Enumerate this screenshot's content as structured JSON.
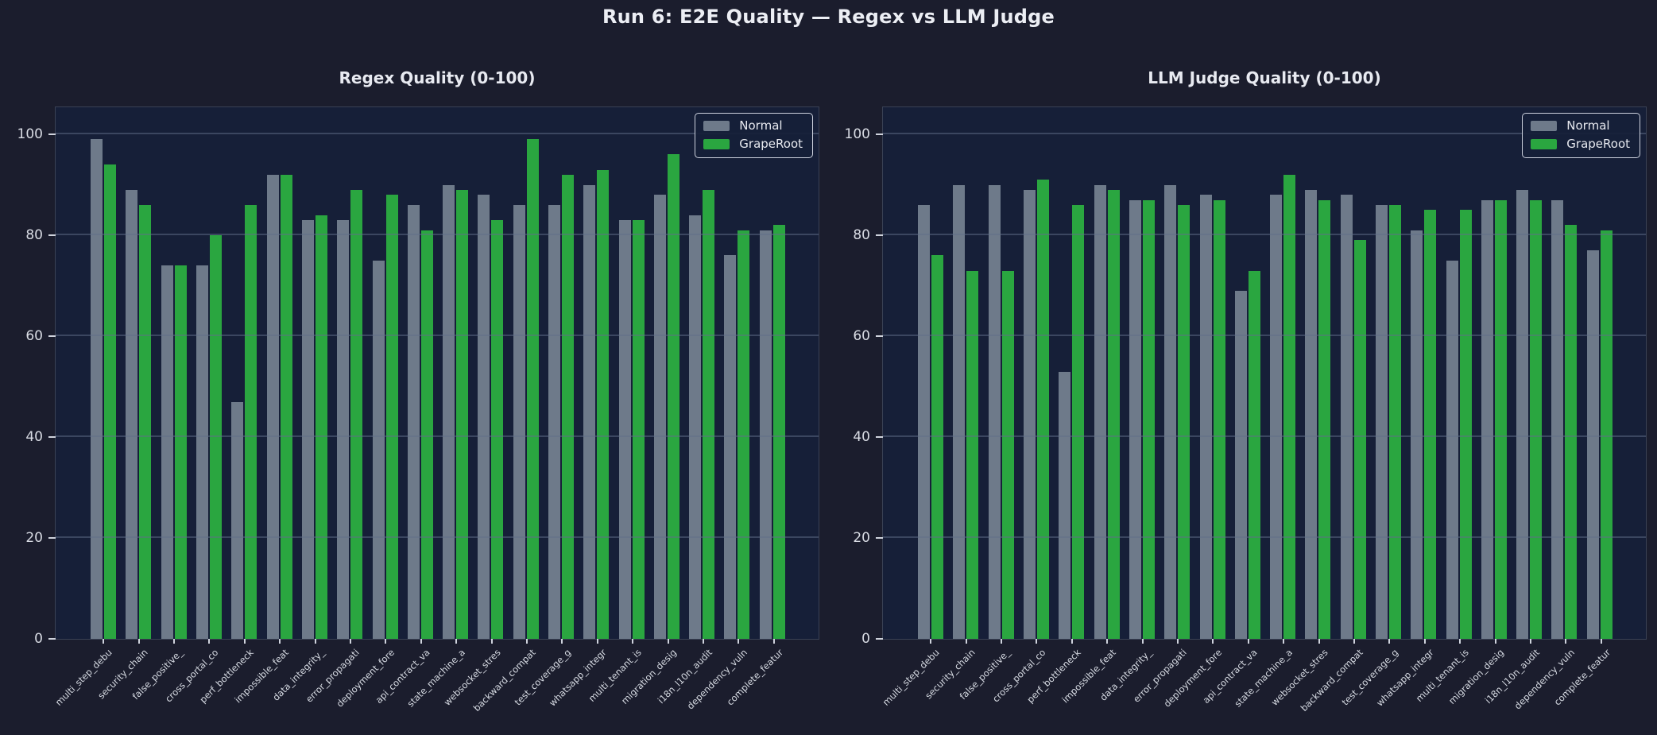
{
  "page_title": "Run 6: E2E Quality — Regex vs LLM Judge",
  "colors": {
    "background": "#1b1d2d",
    "plot_background": "#161f38",
    "normal_bar": "#6e7a8a",
    "graperoot_bar": "#2aa640",
    "tick_text": "#d9dce4",
    "title_text": "#eceef4"
  },
  "legend": {
    "entries": [
      {
        "label": "Normal",
        "color": "#6e7a8a"
      },
      {
        "label": "GrapeRoot",
        "color": "#2aa640"
      }
    ],
    "position": "upper right"
  },
  "chart_data": [
    {
      "type": "bar",
      "title": "Regex Quality (0-100)",
      "categories": [
        "multi_step_debu",
        "security_chain",
        "false_positive_",
        "cross_portal_co",
        "perf_bottleneck",
        "impossible_feat",
        "data_integrity_",
        "error_propagati",
        "deployment_fore",
        "api_contract_va",
        "state_machine_a",
        "websocket_stres",
        "backward_compat",
        "test_coverage_g",
        "whatsapp_integr",
        "multi_tenant_is",
        "migration_desig",
        "i18n_l10n_audit",
        "dependency_vuln",
        "complete_featur"
      ],
      "series": [
        {
          "name": "Normal",
          "values": [
            99,
            89,
            74,
            74,
            47,
            92,
            83,
            83,
            75,
            86,
            90,
            88,
            86,
            86,
            90,
            83,
            88,
            84,
            76,
            81
          ]
        },
        {
          "name": "GrapeRoot",
          "values": [
            94,
            86,
            74,
            80,
            86,
            92,
            84,
            89,
            88,
            81,
            89,
            83,
            99,
            92,
            93,
            83,
            96,
            89,
            81,
            82
          ]
        }
      ],
      "ylim": [
        0,
        105.7
      ],
      "yticks": [
        0,
        20,
        40,
        60,
        80,
        100
      ],
      "grid": true,
      "legend_position": "upper right"
    },
    {
      "type": "bar",
      "title": "LLM Judge Quality (0-100)",
      "categories": [
        "multi_step_debu",
        "security_chain",
        "false_positive_",
        "cross_portal_co",
        "perf_bottleneck",
        "impossible_feat",
        "data_integrity_",
        "error_propagati",
        "deployment_fore",
        "api_contract_va",
        "state_machine_a",
        "websocket_stres",
        "backward_compat",
        "test_coverage_g",
        "whatsapp_integr",
        "multi_tenant_is",
        "migration_desig",
        "i18n_l10n_audit",
        "dependency_vuln",
        "complete_featur"
      ],
      "series": [
        {
          "name": "Normal",
          "values": [
            86,
            90,
            90,
            89,
            53,
            90,
            87,
            90,
            88,
            69,
            88,
            89,
            88,
            86,
            81,
            75,
            87,
            89,
            87,
            77
          ]
        },
        {
          "name": "GrapeRoot",
          "values": [
            76,
            73,
            73,
            91,
            86,
            89,
            87,
            86,
            87,
            73,
            92,
            87,
            79,
            86,
            85,
            85,
            87,
            87,
            82,
            81
          ]
        }
      ],
      "ylim": [
        0,
        105.7
      ],
      "yticks": [
        0,
        20,
        40,
        60,
        80,
        100
      ],
      "grid": true,
      "legend_position": "upper right"
    }
  ]
}
